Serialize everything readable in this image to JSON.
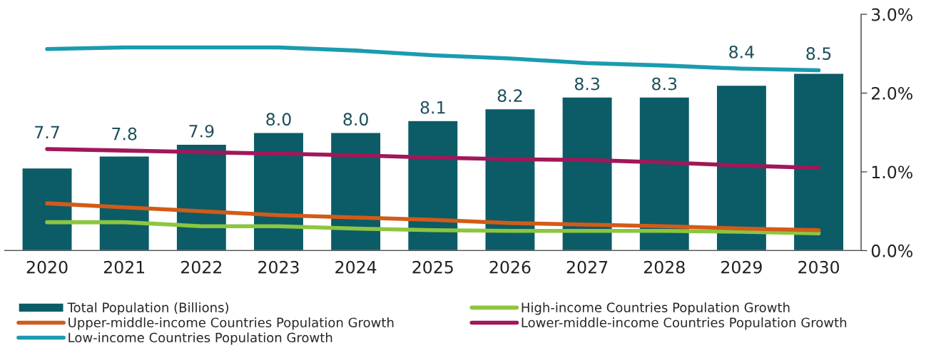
{
  "chart_data": {
    "type": "bar",
    "categories": [
      "2020",
      "2021",
      "2022",
      "2023",
      "2024",
      "2025",
      "2026",
      "2027",
      "2028",
      "2029",
      "2030"
    ],
    "ylim": [
      7.0,
      9.0
    ],
    "y2lim": [
      0,
      3.0
    ],
    "y2ticks": [
      {
        "value": 0,
        "label": "0.0%"
      },
      {
        "value": 1.0,
        "label": "1.0%"
      },
      {
        "value": 2.0,
        "label": "2.0%"
      },
      {
        "value": 3.0,
        "label": "3.0%"
      }
    ],
    "legend": "bottom",
    "grid": false,
    "series": [
      {
        "name": "Total Population (Billions)",
        "color": "#0b5c67",
        "value_labels": [
          "7.7",
          "7.8",
          "7.9",
          "8.0",
          "8.0",
          "8.1",
          "8.2",
          "8.3",
          "8.3",
          "8.4",
          "8.5"
        ],
        "values": [
          7.7,
          7.8,
          7.9,
          8.0,
          8.0,
          8.1,
          8.2,
          8.3,
          8.3,
          8.4,
          8.5
        ]
      },
      {
        "name": "High-income Countries Population Growth",
        "type": "line",
        "axis": "y2",
        "color": "#8cc63f",
        "values": [
          0.36,
          0.36,
          0.31,
          0.31,
          0.28,
          0.26,
          0.25,
          0.25,
          0.25,
          0.24,
          0.22
        ]
      },
      {
        "name": "Upper-middle-income Countries Population Growth",
        "type": "line",
        "axis": "y2",
        "color": "#d25b19",
        "values": [
          0.6,
          0.55,
          0.5,
          0.45,
          0.42,
          0.39,
          0.35,
          0.33,
          0.31,
          0.28,
          0.26
        ]
      },
      {
        "name": "Lower-middle-income Countries Population Growth",
        "type": "line",
        "axis": "y2",
        "color": "#a0185a",
        "values": [
          1.29,
          1.27,
          1.25,
          1.23,
          1.21,
          1.18,
          1.16,
          1.15,
          1.12,
          1.08,
          1.05
        ]
      },
      {
        "name": "Low-income Countries Population Growth",
        "type": "line",
        "axis": "y2",
        "color": "#1a9bb0",
        "values": [
          2.56,
          2.58,
          2.58,
          2.58,
          2.54,
          2.48,
          2.44,
          2.38,
          2.35,
          2.31,
          2.29
        ]
      }
    ]
  }
}
